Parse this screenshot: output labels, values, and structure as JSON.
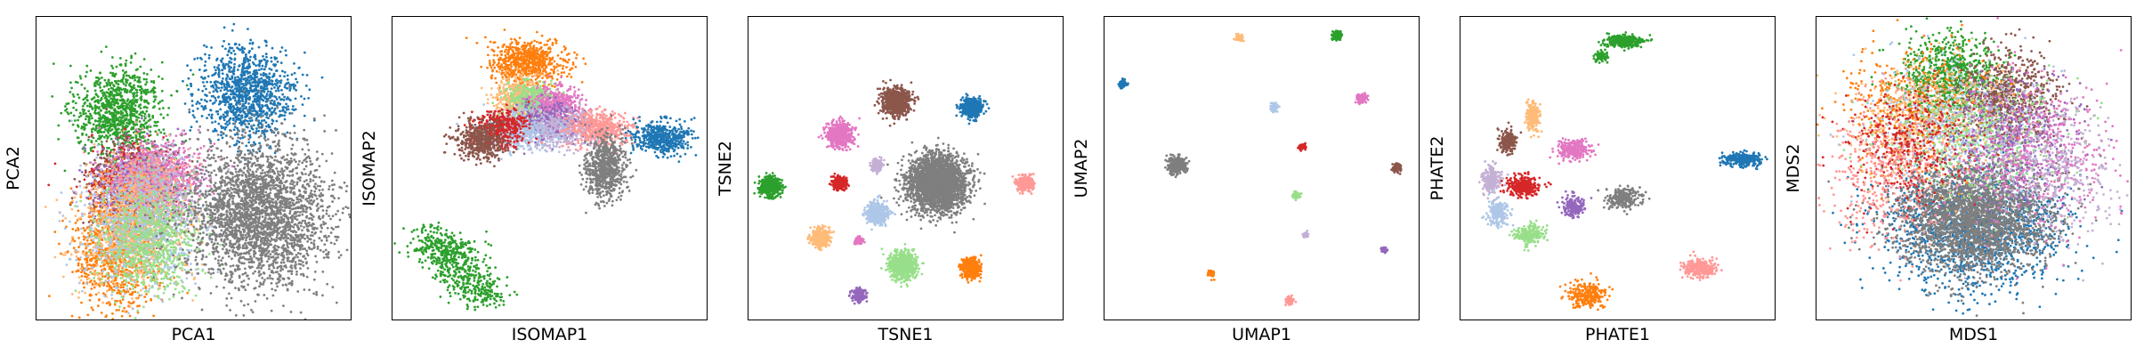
{
  "chart_data": [
    {
      "type": "scatter",
      "xlabel": "PCA1",
      "ylabel": "PCA2",
      "xlim": [
        0,
        100
      ],
      "ylim": [
        0,
        100
      ],
      "grid": false,
      "clusters": [
        {
          "color": "#1f77b4",
          "x": 67,
          "y": 75,
          "sx": 7.5,
          "sy": 7.5,
          "n": 1100
        },
        {
          "color": "#2ca02c",
          "x": 26,
          "y": 68,
          "sx": 7,
          "sy": 8,
          "n": 1000
        },
        {
          "color": "#8c564b",
          "x": 29,
          "y": 45,
          "sx": 7,
          "sy": 7,
          "n": 600
        },
        {
          "color": "#d62728",
          "x": 31,
          "y": 46,
          "sx": 7,
          "sy": 6,
          "n": 550
        },
        {
          "color": "#9467bd",
          "x": 34,
          "y": 45,
          "sx": 7,
          "sy": 6,
          "n": 550
        },
        {
          "color": "#e377c2",
          "x": 38,
          "y": 47,
          "sx": 8,
          "sy": 6,
          "n": 700
        },
        {
          "color": "#c5b0d5",
          "x": 36,
          "y": 43,
          "sx": 8,
          "sy": 7,
          "n": 450
        },
        {
          "color": "#ff9896",
          "x": 35,
          "y": 44,
          "sx": 7,
          "sy": 6,
          "n": 400
        },
        {
          "color": "#ff7f0e",
          "x": 25,
          "y": 22,
          "sx": 7,
          "sy": 10,
          "n": 900
        },
        {
          "color": "#ffbb78",
          "x": 30,
          "y": 28,
          "sx": 9,
          "sy": 10,
          "n": 800
        },
        {
          "color": "#aec7e8",
          "x": 33,
          "y": 30,
          "sx": 9,
          "sy": 10,
          "n": 800
        },
        {
          "color": "#98df8a",
          "x": 36,
          "y": 26,
          "sx": 8,
          "sy": 9,
          "n": 800
        },
        {
          "color": "#7f7f7f",
          "x": 71,
          "y": 35,
          "sx": 11,
          "sy": 12,
          "n": 2800
        }
      ]
    },
    {
      "type": "scatter",
      "xlabel": "ISOMAP1",
      "ylabel": "ISOMAP2",
      "xlim": [
        0,
        100
      ],
      "ylim": [
        0,
        100
      ],
      "grid": false,
      "clusters": [
        {
          "color": "#2ca02c",
          "x": 14,
          "y": 25,
          "sx": 5,
          "sy": 3,
          "n": 180
        },
        {
          "color": "#2ca02c",
          "x": 20,
          "y": 20,
          "sx": 4,
          "sy": 4,
          "n": 220
        },
        {
          "color": "#2ca02c",
          "x": 25,
          "y": 12,
          "sx": 4,
          "sy": 3,
          "n": 160
        },
        {
          "color": "#2ca02c",
          "x": 30,
          "y": 8,
          "sx": 3,
          "sy": 2,
          "n": 80
        },
        {
          "color": "#ff7f0e",
          "x": 43,
          "y": 85,
          "sx": 6,
          "sy": 3.5,
          "n": 700
        },
        {
          "color": "#ffbb78",
          "x": 40,
          "y": 73,
          "sx": 4,
          "sy": 4,
          "n": 450
        },
        {
          "color": "#98df8a",
          "x": 45,
          "y": 72,
          "sx": 4,
          "sy": 3,
          "n": 450
        },
        {
          "color": "#e377c2",
          "x": 52,
          "y": 71,
          "sx": 4,
          "sy": 3,
          "n": 400
        },
        {
          "color": "#9467bd",
          "x": 50,
          "y": 65,
          "sx": 6,
          "sy": 3,
          "n": 450
        },
        {
          "color": "#c5b0d5",
          "x": 54,
          "y": 63,
          "sx": 7,
          "sy": 3,
          "n": 400
        },
        {
          "color": "#aec7e8",
          "x": 40,
          "y": 62,
          "sx": 6,
          "sy": 3,
          "n": 450
        },
        {
          "color": "#d62728",
          "x": 34,
          "y": 63,
          "sx": 4,
          "sy": 3,
          "n": 400
        },
        {
          "color": "#8c564b",
          "x": 28,
          "y": 59,
          "sx": 4,
          "sy": 3,
          "n": 450
        },
        {
          "color": "#ff9896",
          "x": 66,
          "y": 63,
          "sx": 5,
          "sy": 3,
          "n": 450
        },
        {
          "color": "#1f77b4",
          "x": 86,
          "y": 60,
          "sx": 4.5,
          "sy": 3,
          "n": 500
        },
        {
          "color": "#7f7f7f",
          "x": 68,
          "y": 50,
          "sx": 3,
          "sy": 5,
          "n": 700
        }
      ]
    },
    {
      "type": "scatter",
      "xlabel": "TSNE1",
      "ylabel": "TSNE2",
      "xlim": [
        0,
        100
      ],
      "ylim": [
        0,
        100
      ],
      "grid": false,
      "clusters": [
        {
          "color": "#7f7f7f",
          "x": 60,
          "y": 45,
          "sx": 4.6,
          "sy": 4.6,
          "n": 2800
        },
        {
          "color": "#8c564b",
          "x": 47,
          "y": 72,
          "sx": 2.2,
          "sy": 2.2,
          "n": 700
        },
        {
          "color": "#1f77b4",
          "x": 71,
          "y": 70,
          "sx": 1.6,
          "sy": 1.6,
          "n": 500
        },
        {
          "color": "#e377c2",
          "x": 29,
          "y": 61,
          "sx": 2,
          "sy": 2,
          "n": 550
        },
        {
          "color": "#c5b0d5",
          "x": 41,
          "y": 51,
          "sx": 0.9,
          "sy": 0.9,
          "n": 200
        },
        {
          "color": "#2ca02c",
          "x": 7,
          "y": 44,
          "sx": 1.6,
          "sy": 1.6,
          "n": 550
        },
        {
          "color": "#d62728",
          "x": 29,
          "y": 45,
          "sx": 1.1,
          "sy": 1.1,
          "n": 300
        },
        {
          "color": "#ff9896",
          "x": 88,
          "y": 45,
          "sx": 1.2,
          "sy": 1.2,
          "n": 300
        },
        {
          "color": "#aec7e8",
          "x": 41,
          "y": 35,
          "sx": 1.7,
          "sy": 1.7,
          "n": 500
        },
        {
          "color": "#ffbb78",
          "x": 23,
          "y": 27,
          "sx": 1.4,
          "sy": 1.4,
          "n": 400
        },
        {
          "color": "#e377c2",
          "x": 35,
          "y": 26,
          "sx": 0.6,
          "sy": 0.6,
          "n": 80
        },
        {
          "color": "#98df8a",
          "x": 49,
          "y": 18,
          "sx": 2.2,
          "sy": 2.2,
          "n": 700
        },
        {
          "color": "#ff7f0e",
          "x": 71,
          "y": 17,
          "sx": 1.5,
          "sy": 1.5,
          "n": 450
        },
        {
          "color": "#9467bd",
          "x": 35,
          "y": 8,
          "sx": 1,
          "sy": 1,
          "n": 200
        }
      ]
    },
    {
      "type": "scatter",
      "xlabel": "UMAP1",
      "ylabel": "UMAP2",
      "xlim": [
        0,
        100
      ],
      "ylim": [
        0,
        100
      ],
      "grid": false,
      "clusters": [
        {
          "color": "#1f77b4",
          "x": 6,
          "y": 78,
          "sx": 0.6,
          "sy": 0.6,
          "n": 80
        },
        {
          "color": "#ffbb78",
          "x": 43,
          "y": 93,
          "sx": 0.6,
          "sy": 0.6,
          "n": 80
        },
        {
          "color": "#2ca02c",
          "x": 74,
          "y": 94,
          "sx": 0.7,
          "sy": 0.7,
          "n": 120
        },
        {
          "color": "#e377c2",
          "x": 82,
          "y": 73,
          "sx": 0.8,
          "sy": 0.8,
          "n": 100
        },
        {
          "color": "#aec7e8",
          "x": 54,
          "y": 70,
          "sx": 0.6,
          "sy": 0.6,
          "n": 80
        },
        {
          "color": "#d62728",
          "x": 63,
          "y": 57,
          "sx": 0.5,
          "sy": 0.5,
          "n": 60
        },
        {
          "color": "#7f7f7f",
          "x": 23,
          "y": 51,
          "sx": 1.4,
          "sy": 1.4,
          "n": 350
        },
        {
          "color": "#8c564b",
          "x": 93,
          "y": 50,
          "sx": 0.7,
          "sy": 0.7,
          "n": 80
        },
        {
          "color": "#98df8a",
          "x": 61,
          "y": 41,
          "sx": 0.6,
          "sy": 0.6,
          "n": 80
        },
        {
          "color": "#c5b0d5",
          "x": 64,
          "y": 28,
          "sx": 0.4,
          "sy": 0.4,
          "n": 40
        },
        {
          "color": "#9467bd",
          "x": 89,
          "y": 23,
          "sx": 0.4,
          "sy": 0.4,
          "n": 40
        },
        {
          "color": "#ff7f0e",
          "x": 34,
          "y": 15,
          "sx": 0.6,
          "sy": 0.6,
          "n": 60
        },
        {
          "color": "#ff9896",
          "x": 59,
          "y": 6,
          "sx": 0.6,
          "sy": 0.6,
          "n": 60
        }
      ]
    },
    {
      "type": "scatter",
      "xlabel": "PHATE1",
      "ylabel": "PHATE2",
      "xlim": [
        0,
        100
      ],
      "ylim": [
        0,
        100
      ],
      "grid": false,
      "clusters": [
        {
          "color": "#2ca02c",
          "x": 52,
          "y": 92,
          "sx": 3,
          "sy": 1,
          "n": 350
        },
        {
          "color": "#2ca02c",
          "x": 45,
          "y": 87,
          "sx": 1,
          "sy": 1,
          "n": 80
        },
        {
          "color": "#ffbb78",
          "x": 23,
          "y": 67,
          "sx": 1,
          "sy": 2.5,
          "n": 220
        },
        {
          "color": "#8c564b",
          "x": 15,
          "y": 59,
          "sx": 1.4,
          "sy": 2,
          "n": 200
        },
        {
          "color": "#e377c2",
          "x": 36,
          "y": 56,
          "sx": 2.5,
          "sy": 1.6,
          "n": 280
        },
        {
          "color": "#1f77b4",
          "x": 90,
          "y": 53,
          "sx": 2.8,
          "sy": 1.2,
          "n": 320
        },
        {
          "color": "#c5b0d5",
          "x": 10,
          "y": 46,
          "sx": 1.5,
          "sy": 2.5,
          "n": 200
        },
        {
          "color": "#d62728",
          "x": 20,
          "y": 44,
          "sx": 2.5,
          "sy": 1.8,
          "n": 280
        },
        {
          "color": "#7f7f7f",
          "x": 52,
          "y": 40,
          "sx": 2.6,
          "sy": 1.6,
          "n": 260
        },
        {
          "color": "#9467bd",
          "x": 36,
          "y": 37,
          "sx": 1.6,
          "sy": 1.6,
          "n": 200
        },
        {
          "color": "#aec7e8",
          "x": 12,
          "y": 35,
          "sx": 1.6,
          "sy": 2.2,
          "n": 220
        },
        {
          "color": "#98df8a",
          "x": 22,
          "y": 28,
          "sx": 2,
          "sy": 1.6,
          "n": 250
        },
        {
          "color": "#ff9896",
          "x": 76,
          "y": 17,
          "sx": 2.5,
          "sy": 1.6,
          "n": 250
        },
        {
          "color": "#ff7f0e",
          "x": 40,
          "y": 8,
          "sx": 3,
          "sy": 2,
          "n": 250
        }
      ]
    },
    {
      "type": "scatter",
      "xlabel": "MDS1",
      "ylabel": "MDS2",
      "xlim": [
        0,
        100
      ],
      "ylim": [
        0,
        100
      ],
      "grid": false,
      "clusters": [
        {
          "color": "#1f77b4",
          "x": 50,
          "y": 30,
          "sx": 14,
          "sy": 10,
          "n": 1500
        },
        {
          "color": "#7f7f7f",
          "x": 50,
          "y": 34,
          "sx": 12,
          "sy": 9,
          "n": 2800
        },
        {
          "color": "#2ca02c",
          "x": 43,
          "y": 80,
          "sx": 8,
          "sy": 7,
          "n": 800
        },
        {
          "color": "#8c564b",
          "x": 60,
          "y": 72,
          "sx": 8,
          "sy": 8,
          "n": 800
        },
        {
          "color": "#ff7f0e",
          "x": 30,
          "y": 70,
          "sx": 12,
          "sy": 10,
          "n": 500
        },
        {
          "color": "#ffbb78",
          "x": 36,
          "y": 66,
          "sx": 13,
          "sy": 10,
          "n": 500
        },
        {
          "color": "#aec7e8",
          "x": 44,
          "y": 64,
          "sx": 14,
          "sy": 10,
          "n": 500
        },
        {
          "color": "#98df8a",
          "x": 52,
          "y": 60,
          "sx": 14,
          "sy": 10,
          "n": 500
        },
        {
          "color": "#d62728",
          "x": 30,
          "y": 58,
          "sx": 10,
          "sy": 10,
          "n": 400
        },
        {
          "color": "#9467bd",
          "x": 64,
          "y": 60,
          "sx": 10,
          "sy": 10,
          "n": 400
        },
        {
          "color": "#e377c2",
          "x": 70,
          "y": 56,
          "sx": 12,
          "sy": 12,
          "n": 500
        },
        {
          "color": "#c5b0d5",
          "x": 76,
          "y": 48,
          "sx": 10,
          "sy": 12,
          "n": 400
        },
        {
          "color": "#ff9896",
          "x": 22,
          "y": 48,
          "sx": 10,
          "sy": 12,
          "n": 400
        }
      ]
    }
  ]
}
